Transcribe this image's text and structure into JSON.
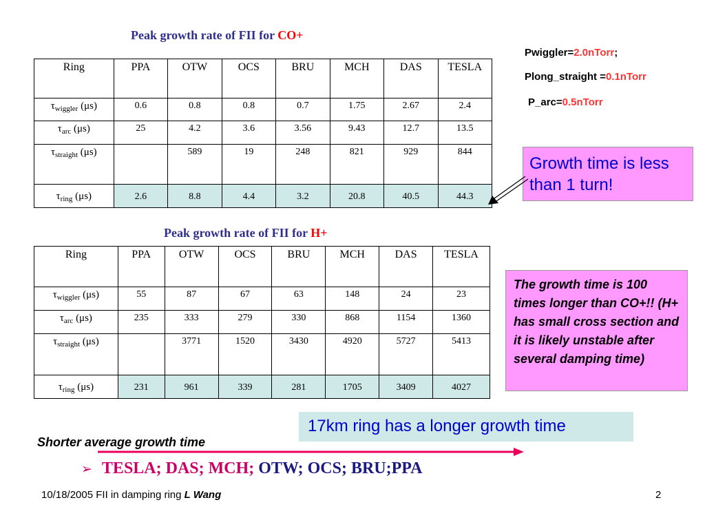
{
  "slide": {
    "table1": {
      "title_prefix": "Peak growth rate of FII for ",
      "title_species": "CO+",
      "headers": [
        "Ring",
        "PPA",
        "OTW",
        "OCS",
        "BRU",
        "MCH",
        "DAS",
        "TESLA"
      ],
      "rows": [
        {
          "sym": "τ",
          "sub": "wiggler",
          "unit": " (μs)",
          "values": [
            "0.6",
            "0.8",
            "0.8",
            "0.7",
            "1.75",
            "2.67",
            "2.4"
          ]
        },
        {
          "sym": "τ",
          "sub": "arc",
          "unit": " (μs)",
          "values": [
            "25",
            "4.2",
            "3.6",
            "3.56",
            "9.43",
            "12.7",
            "13.5"
          ]
        },
        {
          "sym": "τ",
          "sub": "straight",
          "unit": " (μs)",
          "values": [
            "",
            "589",
            "19",
            "248",
            "821",
            "929",
            "844"
          ]
        },
        {
          "sym": "τ",
          "sub": "ring",
          "unit": " (μs)",
          "values": [
            "2.6",
            "8.8",
            "4.4",
            "3.2",
            "20.8",
            "40.5",
            "44.3"
          ]
        }
      ]
    },
    "table2": {
      "title_prefix": "Peak growth rate of FII for ",
      "title_species": "H+",
      "headers": [
        "Ring",
        "PPA",
        "OTW",
        "OCS",
        "BRU",
        "MCH",
        "DAS",
        "TESLA"
      ],
      "rows": [
        {
          "sym": "τ",
          "sub": "wiggler",
          "unit": " (μs)",
          "values": [
            "55",
            "87",
            "67",
            "63",
            "148",
            "24",
            "23"
          ]
        },
        {
          "sym": "τ",
          "sub": "arc",
          "unit": " (μs)",
          "values": [
            "235",
            "333",
            "279",
            "330",
            "868",
            "1154",
            "1360"
          ]
        },
        {
          "sym": "τ",
          "sub": "straight",
          "unit": " (μs)",
          "values": [
            "",
            "3771",
            "1520",
            "3430",
            "4920",
            "5727",
            "5413"
          ]
        },
        {
          "sym": "τ",
          "sub": "ring",
          "unit": " (μs)",
          "values": [
            "231",
            "961",
            "339",
            "281",
            "1705",
            "3409",
            "4027"
          ]
        }
      ]
    },
    "pressures": [
      {
        "label": "Pwiggler=",
        "value": "2.0nTorr",
        "suffix": ";"
      },
      {
        "label": "Plong_straight =",
        "value": "0.1nTorr",
        "suffix": ""
      },
      {
        "label": "P_arc=",
        "value": "0.5nTorr",
        "suffix": ""
      }
    ],
    "callout_growth": "Growth time is less than 1 turn!",
    "callout_h": "The growth time is 100 times longer than CO+!! (H+ has small cross section and it is likely unstable after several damping time)",
    "callout_17km": "17km ring has a longer growth time",
    "shorter_label": "Shorter average growth time",
    "ranking": {
      "bullet": "➢",
      "red_part": "TESLA; DAS; MCH;",
      "blue_part": " OTW; OCS; BRU;PPA"
    },
    "footer": {
      "date_title": "10/18/2005 FII in damping ring ",
      "author": "L Wang",
      "page": "2"
    },
    "colors": {
      "title_blue": "#2e2e8c",
      "accent_red": "#ff0000",
      "pink_box": "#ff99ff",
      "teal_box": "#cfe8e8",
      "ranking_red": "#cc0066",
      "ranking_blue": "#1a1a80"
    }
  }
}
